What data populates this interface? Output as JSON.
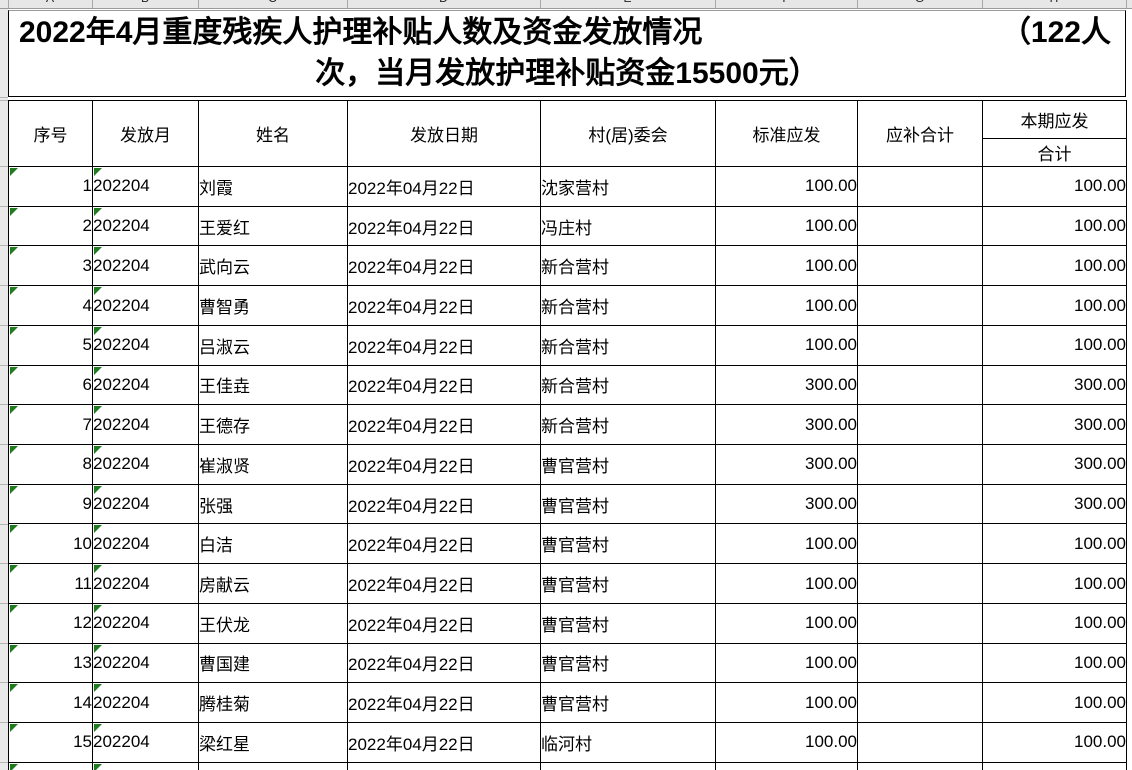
{
  "sheet": {
    "column_letters": [
      "A",
      "B",
      "C",
      "D",
      "E",
      "F",
      "G",
      "H"
    ]
  },
  "title": {
    "line1_left": "2022年4月重度残疾人护理补贴人数及资金发放情况",
    "line1_right": "（122人",
    "line2": "次，当月发放护理补贴资金15500元）"
  },
  "table": {
    "headers": {
      "seq": "序号",
      "month": "发放月",
      "name": "姓名",
      "date": "发放日期",
      "village": "村(居)委会",
      "standard": "标准应发",
      "supplement": "应补合计",
      "current": "本期应发",
      "current_sub": "合计"
    },
    "rows": [
      {
        "seq": "1",
        "month": "202204",
        "name": "刘霞",
        "date": "2022年04月22日",
        "village": "沈家营村",
        "standard": "100.00",
        "supplement": "",
        "current": "100.00"
      },
      {
        "seq": "2",
        "month": "202204",
        "name": "王爱红",
        "date": "2022年04月22日",
        "village": "冯庄村",
        "standard": "100.00",
        "supplement": "",
        "current": "100.00"
      },
      {
        "seq": "3",
        "month": "202204",
        "name": "武向云",
        "date": "2022年04月22日",
        "village": "新合营村",
        "standard": "100.00",
        "supplement": "",
        "current": "100.00"
      },
      {
        "seq": "4",
        "month": "202204",
        "name": "曹智勇",
        "date": "2022年04月22日",
        "village": "新合营村",
        "standard": "100.00",
        "supplement": "",
        "current": "100.00"
      },
      {
        "seq": "5",
        "month": "202204",
        "name": "吕淑云",
        "date": "2022年04月22日",
        "village": "新合营村",
        "standard": "100.00",
        "supplement": "",
        "current": "100.00"
      },
      {
        "seq": "6",
        "month": "202204",
        "name": "王佳垚",
        "date": "2022年04月22日",
        "village": "新合营村",
        "standard": "300.00",
        "supplement": "",
        "current": "300.00"
      },
      {
        "seq": "7",
        "month": "202204",
        "name": "王德存",
        "date": "2022年04月22日",
        "village": "新合营村",
        "standard": "300.00",
        "supplement": "",
        "current": "300.00"
      },
      {
        "seq": "8",
        "month": "202204",
        "name": "崔淑贤",
        "date": "2022年04月22日",
        "village": "曹官营村",
        "standard": "300.00",
        "supplement": "",
        "current": "300.00"
      },
      {
        "seq": "9",
        "month": "202204",
        "name": "张强",
        "date": "2022年04月22日",
        "village": "曹官营村",
        "standard": "300.00",
        "supplement": "",
        "current": "300.00"
      },
      {
        "seq": "10",
        "month": "202204",
        "name": "白洁",
        "date": "2022年04月22日",
        "village": "曹官营村",
        "standard": "100.00",
        "supplement": "",
        "current": "100.00"
      },
      {
        "seq": "11",
        "month": "202204",
        "name": "房献云",
        "date": "2022年04月22日",
        "village": "曹官营村",
        "standard": "100.00",
        "supplement": "",
        "current": "100.00"
      },
      {
        "seq": "12",
        "month": "202204",
        "name": "王伏龙",
        "date": "2022年04月22日",
        "village": "曹官营村",
        "standard": "100.00",
        "supplement": "",
        "current": "100.00"
      },
      {
        "seq": "13",
        "month": "202204",
        "name": "曹国建",
        "date": "2022年04月22日",
        "village": "曹官营村",
        "standard": "100.00",
        "supplement": "",
        "current": "100.00"
      },
      {
        "seq": "14",
        "month": "202204",
        "name": "腾桂菊",
        "date": "2022年04月22日",
        "village": "曹官营村",
        "standard": "100.00",
        "supplement": "",
        "current": "100.00"
      },
      {
        "seq": "15",
        "month": "202204",
        "name": "梁红星",
        "date": "2022年04月22日",
        "village": "临河村",
        "standard": "100.00",
        "supplement": "",
        "current": "100.00"
      }
    ]
  },
  "colors": {
    "error_indicator_green": "#1e7b1e",
    "grid_line": "#000000",
    "gutter_gray": "#e9e9e9"
  }
}
